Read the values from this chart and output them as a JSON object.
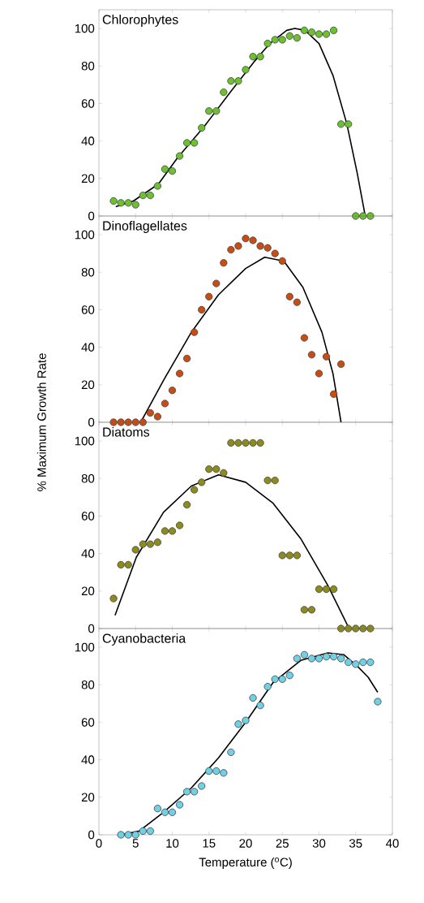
{
  "chart_data": [
    {
      "type": "scatter",
      "title": "Chlorophytes",
      "xlim": [
        0,
        40
      ],
      "ylim": [
        0,
        110
      ],
      "xticks": [
        0,
        5,
        10,
        15,
        20,
        25,
        30,
        35,
        40
      ],
      "yticks": [
        0,
        20,
        40,
        60,
        80,
        100
      ],
      "tick_labels": "y",
      "marker": "circle",
      "series": [
        {
          "color": "#6cc12f",
          "x": [
            2,
            3,
            4,
            5,
            6,
            7,
            8,
            9,
            10,
            11,
            12,
            13,
            14,
            15,
            16,
            17,
            18,
            19,
            20,
            21,
            22,
            23,
            24,
            25,
            26,
            27,
            28,
            29,
            30,
            31,
            32,
            33,
            34,
            35,
            36,
            37
          ],
          "values": [
            8,
            7,
            7,
            6,
            11,
            11,
            16,
            25,
            24,
            32,
            39,
            39,
            47,
            56,
            56,
            66,
            72,
            72,
            78,
            85,
            85,
            92,
            94,
            94,
            96,
            95,
            99,
            98,
            97,
            97,
            99,
            49,
            49,
            0,
            0,
            0
          ]
        },
        {
          "type": "line",
          "marker": "none",
          "color": "#000000",
          "x": [
            2.3,
            4.7,
            8.1,
            10.7,
            14.4,
            18.1,
            21.1,
            23.3,
            25.6,
            26.7,
            28.1,
            30,
            31.9,
            33.8,
            35.2,
            36.3
          ],
          "values": [
            5,
            8,
            17,
            31,
            48,
            67,
            82,
            92,
            99,
            100,
            99,
            92,
            75,
            49,
            23,
            0
          ]
        }
      ]
    },
    {
      "type": "scatter",
      "title": "Dinoflagellates",
      "ylabel": "% Maximum Growth Rate",
      "xlim": [
        0,
        40
      ],
      "ylim": [
        0,
        110
      ],
      "xticks": [
        0,
        5,
        10,
        15,
        20,
        25,
        30,
        35,
        40
      ],
      "yticks": [
        0,
        20,
        40,
        60,
        80,
        100
      ],
      "tick_labels": "y",
      "marker": "circle",
      "series": [
        {
          "color": "#c94d12",
          "x": [
            2,
            3,
            4,
            5,
            6,
            7,
            8,
            9,
            10,
            11,
            12,
            13,
            14,
            15,
            16,
            17,
            18,
            19,
            20,
            21,
            22,
            23,
            24,
            25,
            26,
            27,
            28,
            29,
            30,
            31,
            32,
            33
          ],
          "values": [
            0,
            0,
            0,
            0,
            0,
            5,
            3,
            10,
            17,
            26,
            34,
            48,
            60,
            67,
            74,
            85,
            92,
            94,
            98,
            97,
            94,
            93,
            90,
            86,
            67,
            64,
            45,
            36,
            26,
            35,
            15,
            31
          ]
        },
        {
          "type": "line",
          "marker": "none",
          "color": "#000000",
          "x": [
            5.7,
            8.9,
            12.6,
            16.3,
            20,
            22.6,
            25.2,
            27.8,
            30.4,
            31.9,
            33
          ],
          "values": [
            0,
            23,
            48,
            68,
            82,
            88,
            86,
            72,
            48,
            26,
            0
          ]
        }
      ]
    },
    {
      "type": "scatter",
      "title": "Diatoms",
      "xlim": [
        0,
        40
      ],
      "ylim": [
        0,
        110
      ],
      "xticks": [
        0,
        5,
        10,
        15,
        20,
        25,
        30,
        35,
        40
      ],
      "yticks": [
        0,
        20,
        40,
        60,
        80,
        100
      ],
      "tick_labels": "y",
      "marker": "circle",
      "series": [
        {
          "color": "#8c8c1e",
          "x": [
            2,
            3,
            4,
            5,
            6,
            7,
            8,
            9,
            10,
            11,
            12,
            13,
            14,
            15,
            16,
            17,
            18,
            19,
            20,
            21,
            22,
            23,
            24,
            25,
            26,
            27,
            28,
            29,
            30,
            31,
            32,
            33,
            34,
            35,
            36,
            37
          ],
          "values": [
            16,
            34,
            34,
            42,
            45,
            45,
            46,
            52,
            52,
            55,
            66,
            74,
            78,
            85,
            85,
            83,
            99,
            99,
            99,
            99,
            99,
            79,
            79,
            39,
            39,
            39,
            10,
            10,
            21,
            21,
            21,
            0,
            0,
            0,
            0,
            0
          ]
        },
        {
          "type": "line",
          "marker": "none",
          "color": "#000000",
          "x": [
            2.2,
            5.1,
            8.8,
            12.6,
            16.3,
            20,
            23.7,
            27.5,
            31.2,
            34.1
          ],
          "values": [
            7,
            38,
            62,
            76,
            82,
            78,
            67,
            48,
            23,
            0
          ]
        }
      ]
    },
    {
      "type": "scatter",
      "title": "Cyanobacteria",
      "xlabel": "Temperature ($^{o}$C)",
      "xlim": [
        0,
        40
      ],
      "ylim": [
        0,
        110
      ],
      "xticks": [
        0,
        5,
        10,
        15,
        20,
        25,
        30,
        35,
        40
      ],
      "yticks": [
        0,
        20,
        40,
        60,
        80,
        100
      ],
      "marker": "circle",
      "series": [
        {
          "color": "#6fd0e6",
          "x": [
            3,
            4,
            5,
            6,
            7,
            8,
            9,
            10,
            11,
            12,
            13,
            14,
            15,
            16,
            17,
            18,
            19,
            20,
            21,
            22,
            23,
            24,
            25,
            26,
            27,
            28,
            29,
            30,
            31,
            32,
            33,
            34,
            35,
            36,
            37,
            38
          ],
          "values": [
            0,
            0,
            0,
            2,
            2,
            14,
            12,
            12,
            16,
            23,
            23,
            26,
            34,
            34,
            33,
            44,
            59,
            61,
            73,
            69,
            79,
            83,
            83,
            85,
            94,
            96,
            94,
            94,
            95,
            95,
            94,
            92,
            91,
            92,
            92,
            71
          ]
        },
        {
          "type": "line",
          "marker": "none",
          "color": "#000000",
          "x": [
            3.1,
            5.5,
            8.8,
            12.6,
            16.3,
            20,
            23.7,
            27.5,
            31.2,
            33.4,
            35.2,
            36.7,
            38
          ],
          "values": [
            0,
            2,
            12,
            25,
            41,
            60,
            81,
            93,
            97,
            96,
            90,
            84,
            76
          ]
        }
      ]
    }
  ]
}
